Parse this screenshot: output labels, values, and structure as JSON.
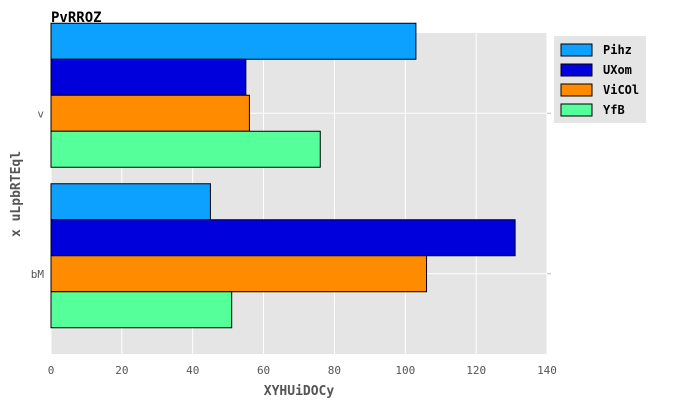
{
  "chart_data": {
    "type": "bar",
    "orientation": "horizontal",
    "title": "PvRROZ",
    "xlabel": "XYHUiDOCy",
    "ylabel": "x  uLpbRTEql",
    "categories": [
      "bM",
      "v"
    ],
    "series": [
      {
        "name": "Pihz",
        "color": "#0ca0ff",
        "values": [
          45,
          103
        ]
      },
      {
        "name": "UXom",
        "color": "#0000dd",
        "values": [
          131,
          55
        ]
      },
      {
        "name": "ViCOl",
        "color": "#ff8c00",
        "values": [
          106,
          56
        ]
      },
      {
        "name": "YfB",
        "color": "#55ff9a",
        "values": [
          51,
          76
        ]
      }
    ],
    "xlim": [
      0,
      140
    ],
    "xticks": [
      0,
      20,
      40,
      60,
      80,
      100,
      120,
      140
    ],
    "grid": true,
    "legend_position": "outside-right-top",
    "background": "#e5e5e5"
  }
}
